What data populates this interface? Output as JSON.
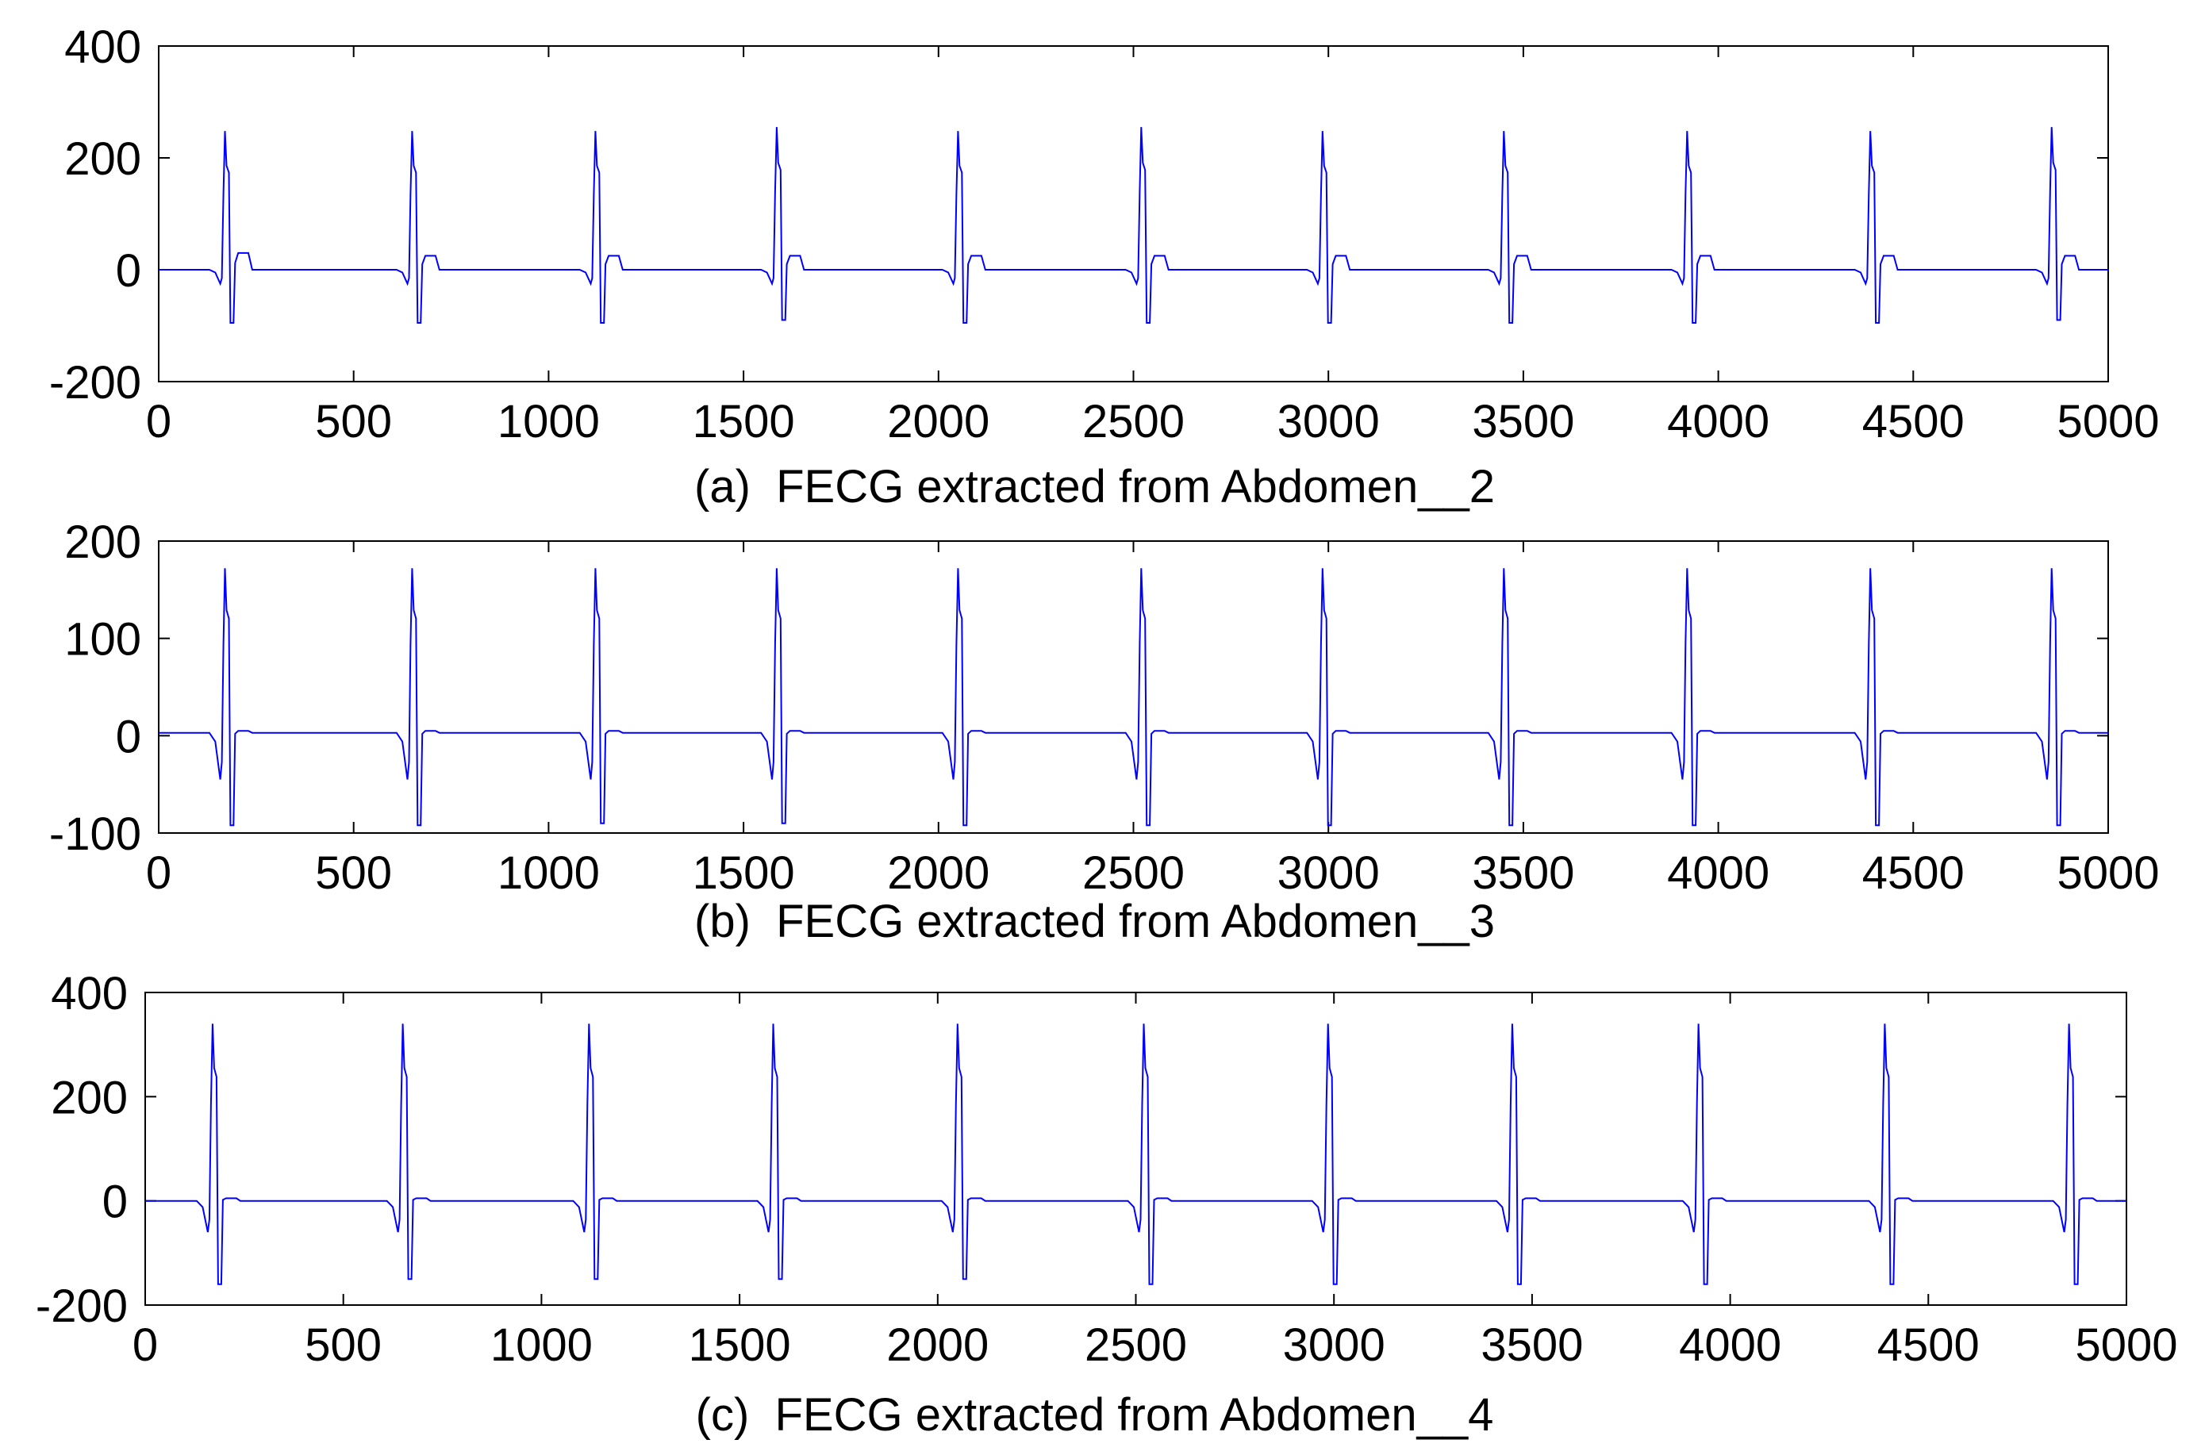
{
  "chart_data": [
    {
      "type": "line",
      "caption": "(a)  FECG extracted from Abdomen__2",
      "xlim": [
        0,
        5000
      ],
      "ylim": [
        -200,
        400
      ],
      "xticks": [
        0,
        500,
        1000,
        1500,
        2000,
        2500,
        3000,
        3500,
        4000,
        4500,
        5000
      ],
      "yticks": [
        -200,
        0,
        200,
        400
      ],
      "line_color": "#0000ff",
      "baseline": 0,
      "beats": [
        {
          "x": 170,
          "peak": 248,
          "trough": -95,
          "pre": -25,
          "post": 30
        },
        {
          "x": 650,
          "peak": 248,
          "trough": -95,
          "pre": -25,
          "post": 25
        },
        {
          "x": 1120,
          "peak": 248,
          "trough": -95,
          "pre": -25,
          "post": 25
        },
        {
          "x": 1585,
          "peak": 255,
          "trough": -90,
          "pre": -25,
          "post": 25
        },
        {
          "x": 2050,
          "peak": 248,
          "trough": -95,
          "pre": -25,
          "post": 25
        },
        {
          "x": 2520,
          "peak": 255,
          "trough": -95,
          "pre": -25,
          "post": 25
        },
        {
          "x": 2985,
          "peak": 248,
          "trough": -95,
          "pre": -25,
          "post": 25
        },
        {
          "x": 3450,
          "peak": 248,
          "trough": -95,
          "pre": -25,
          "post": 25
        },
        {
          "x": 3920,
          "peak": 248,
          "trough": -95,
          "pre": -25,
          "post": 25
        },
        {
          "x": 4390,
          "peak": 248,
          "trough": -95,
          "pre": -25,
          "post": 25
        },
        {
          "x": 4855,
          "peak": 255,
          "trough": -90,
          "pre": -25,
          "post": 25
        }
      ]
    },
    {
      "type": "line",
      "caption": "(b)  FECG extracted from Abdomen__3",
      "xlim": [
        0,
        5000
      ],
      "ylim": [
        -100,
        200
      ],
      "xticks": [
        0,
        500,
        1000,
        1500,
        2000,
        2500,
        3000,
        3500,
        4000,
        4500,
        5000
      ],
      "yticks": [
        -100,
        0,
        100,
        200
      ],
      "line_color": "#0000ff",
      "baseline": 3,
      "beats": [
        {
          "x": 170,
          "peak": 172,
          "trough": -92,
          "pre": -45,
          "post": 5
        },
        {
          "x": 650,
          "peak": 172,
          "trough": -92,
          "pre": -45,
          "post": 5
        },
        {
          "x": 1120,
          "peak": 172,
          "trough": -90,
          "pre": -45,
          "post": 5
        },
        {
          "x": 1585,
          "peak": 172,
          "trough": -90,
          "pre": -45,
          "post": 5
        },
        {
          "x": 2050,
          "peak": 172,
          "trough": -92,
          "pre": -45,
          "post": 5
        },
        {
          "x": 2520,
          "peak": 172,
          "trough": -92,
          "pre": -45,
          "post": 5
        },
        {
          "x": 2985,
          "peak": 172,
          "trough": -92,
          "pre": -45,
          "post": 5
        },
        {
          "x": 3450,
          "peak": 172,
          "trough": -92,
          "pre": -45,
          "post": 5
        },
        {
          "x": 3920,
          "peak": 172,
          "trough": -92,
          "pre": -45,
          "post": 5
        },
        {
          "x": 4390,
          "peak": 172,
          "trough": -92,
          "pre": -45,
          "post": 5
        },
        {
          "x": 4855,
          "peak": 172,
          "trough": -92,
          "pre": -45,
          "post": 5
        }
      ]
    },
    {
      "type": "line",
      "caption": "(c)  FECG extracted from Abdomen__4",
      "xlim": [
        0,
        5000
      ],
      "ylim": [
        -200,
        400
      ],
      "xticks": [
        0,
        500,
        1000,
        1500,
        2000,
        2500,
        3000,
        3500,
        4000,
        4500,
        5000
      ],
      "yticks": [
        -200,
        0,
        200,
        400
      ],
      "line_color": "#0000ff",
      "baseline": 0,
      "beats": [
        {
          "x": 170,
          "peak": 340,
          "trough": -160,
          "pre": -60,
          "post": 5
        },
        {
          "x": 650,
          "peak": 340,
          "trough": -150,
          "pre": -60,
          "post": 5
        },
        {
          "x": 1120,
          "peak": 340,
          "trough": -150,
          "pre": -60,
          "post": 5
        },
        {
          "x": 1585,
          "peak": 340,
          "trough": -150,
          "pre": -60,
          "post": 5
        },
        {
          "x": 2050,
          "peak": 340,
          "trough": -150,
          "pre": -60,
          "post": 5
        },
        {
          "x": 2520,
          "peak": 340,
          "trough": -160,
          "pre": -60,
          "post": 5
        },
        {
          "x": 2985,
          "peak": 340,
          "trough": -160,
          "pre": -60,
          "post": 5
        },
        {
          "x": 3450,
          "peak": 340,
          "trough": -160,
          "pre": -60,
          "post": 5
        },
        {
          "x": 3920,
          "peak": 340,
          "trough": -160,
          "pre": -60,
          "post": 5
        },
        {
          "x": 4390,
          "peak": 340,
          "trough": -160,
          "pre": -60,
          "post": 5
        },
        {
          "x": 4855,
          "peak": 340,
          "trough": -160,
          "pre": -60,
          "post": 5
        }
      ]
    }
  ]
}
